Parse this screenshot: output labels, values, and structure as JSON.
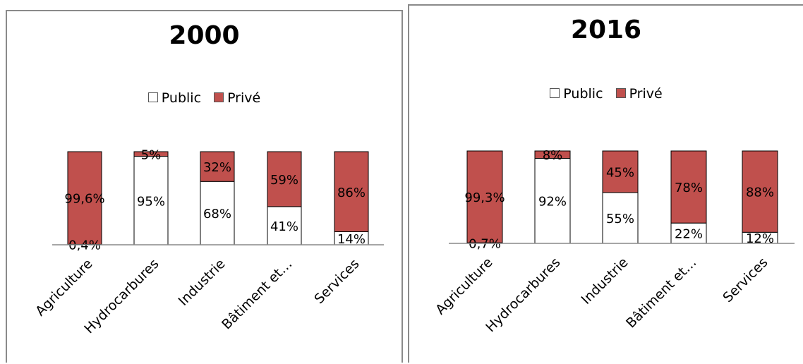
{
  "chart_data": [
    {
      "type": "bar",
      "stacked": true,
      "title": "2000",
      "categories": [
        "Agriculture",
        "Hydrocarbures",
        "Industrie",
        "Bâtiment et…",
        "Services"
      ],
      "series": [
        {
          "name": "Public",
          "values": [
            0.4,
            95,
            68,
            41,
            14
          ],
          "labels": [
            "0,4%",
            "95%",
            "68%",
            "41%",
            "14%"
          ],
          "color": "#ffffff"
        },
        {
          "name": "Privé",
          "values": [
            99.6,
            5,
            32,
            59,
            86
          ],
          "labels": [
            "99,6%",
            "5%",
            "32%",
            "59%",
            "86%"
          ],
          "color": "#c0504d"
        }
      ],
      "ylim": [
        0,
        100
      ],
      "legend": "top",
      "grid": false
    },
    {
      "type": "bar",
      "stacked": true,
      "title": "2016",
      "categories": [
        "Agriculture",
        "Hydrocarbures",
        "Industrie",
        "Bâtiment et…",
        "Services"
      ],
      "series": [
        {
          "name": "Public",
          "values": [
            0.7,
            92,
            55,
            22,
            12
          ],
          "labels": [
            "0,7%",
            "92%",
            "55%",
            "22%",
            "12%"
          ],
          "color": "#ffffff"
        },
        {
          "name": "Privé",
          "values": [
            99.3,
            8,
            45,
            78,
            88
          ],
          "labels": [
            "99,3%",
            "8%",
            "45%",
            "78%",
            "88%"
          ],
          "color": "#c0504d"
        }
      ],
      "ylim": [
        0,
        100
      ],
      "legend": "top",
      "grid": false
    }
  ]
}
